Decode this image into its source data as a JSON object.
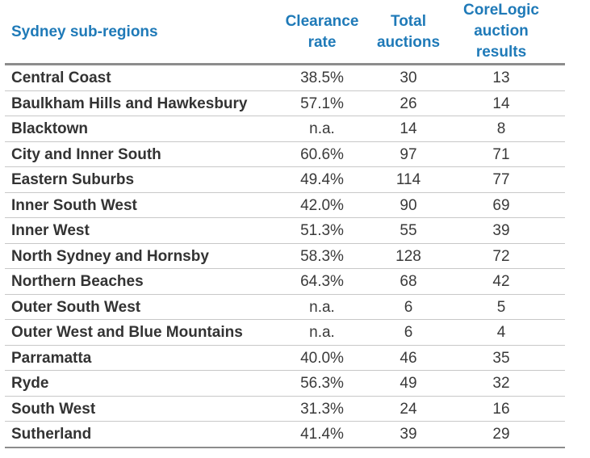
{
  "header": {
    "region": "Sydney sub-regions",
    "clearance": [
      "Clearance",
      "rate"
    ],
    "total": [
      "Total",
      "auctions"
    ],
    "corelogic": [
      "CoreLogic",
      "auction",
      "results"
    ]
  },
  "rows": [
    {
      "region": "Central Coast",
      "clearance": "38.5%",
      "total": "30",
      "corelogic": "13"
    },
    {
      "region": "Baulkham Hills and Hawkesbury",
      "clearance": "57.1%",
      "total": "26",
      "corelogic": "14"
    },
    {
      "region": "Blacktown",
      "clearance": "n.a.",
      "total": "14",
      "corelogic": "8"
    },
    {
      "region": "City and Inner South",
      "clearance": "60.6%",
      "total": "97",
      "corelogic": "71"
    },
    {
      "region": "Eastern Suburbs",
      "clearance": "49.4%",
      "total": "114",
      "corelogic": "77"
    },
    {
      "region": "Inner South West",
      "clearance": "42.0%",
      "total": "90",
      "corelogic": "69"
    },
    {
      "region": "Inner West",
      "clearance": "51.3%",
      "total": "55",
      "corelogic": "39"
    },
    {
      "region": "North Sydney and Hornsby",
      "clearance": "58.3%",
      "total": "128",
      "corelogic": "72"
    },
    {
      "region": "Northern Beaches",
      "clearance": "64.3%",
      "total": "68",
      "corelogic": "42"
    },
    {
      "region": "Outer South West",
      "clearance": "n.a.",
      "total": "6",
      "corelogic": "5"
    },
    {
      "region": "Outer West and Blue Mountains",
      "clearance": "n.a.",
      "total": "6",
      "corelogic": "4"
    },
    {
      "region": "Parramatta",
      "clearance": "40.0%",
      "total": "46",
      "corelogic": "35"
    },
    {
      "region": "Ryde",
      "clearance": "56.3%",
      "total": "49",
      "corelogic": "32"
    },
    {
      "region": "South West",
      "clearance": "31.3%",
      "total": "24",
      "corelogic": "16"
    },
    {
      "region": "Sutherland",
      "clearance": "41.4%",
      "total": "39",
      "corelogic": "29"
    }
  ],
  "colors": {
    "header_text": "#1f7ab8",
    "body_text": "#3a3a3a",
    "rule": "#8c8c8c"
  }
}
